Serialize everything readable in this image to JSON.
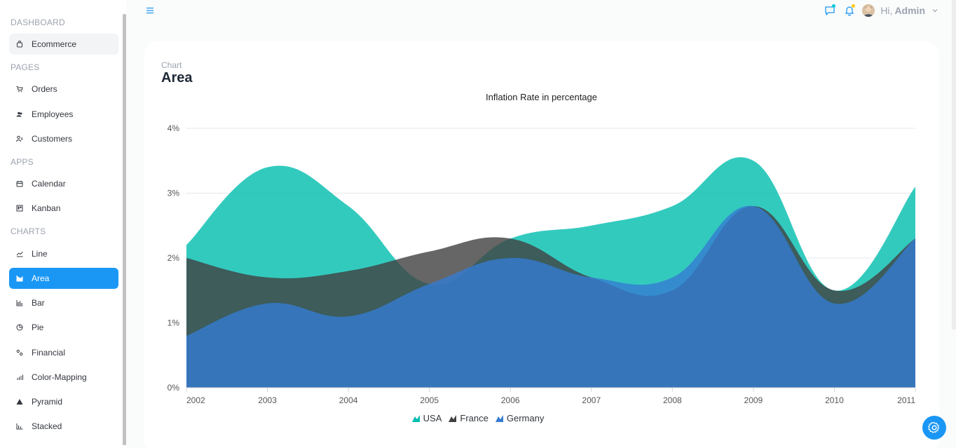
{
  "sidebar": {
    "sections": [
      {
        "title": "DASHBOARD",
        "items": [
          {
            "label": "Ecommerce",
            "icon": "bag-icon"
          }
        ]
      },
      {
        "title": "PAGES",
        "items": [
          {
            "label": "Orders",
            "icon": "cart-icon"
          },
          {
            "label": "Employees",
            "icon": "people-icon"
          },
          {
            "label": "Customers",
            "icon": "user-list-icon"
          }
        ]
      },
      {
        "title": "APPS",
        "items": [
          {
            "label": "Calendar",
            "icon": "calendar-icon"
          },
          {
            "label": "Kanban",
            "icon": "kanban-icon"
          }
        ]
      },
      {
        "title": "CHARTS",
        "items": [
          {
            "label": "Line",
            "icon": "line-chart-icon"
          },
          {
            "label": "Area",
            "icon": "area-chart-icon"
          },
          {
            "label": "Bar",
            "icon": "bar-chart-icon"
          },
          {
            "label": "Pie",
            "icon": "pie-chart-icon"
          },
          {
            "label": "Financial",
            "icon": "financial-icon"
          },
          {
            "label": "Color-Mapping",
            "icon": "color-mapping-icon"
          },
          {
            "label": "Pyramid",
            "icon": "pyramid-icon"
          },
          {
            "label": "Stacked",
            "icon": "stacked-icon"
          }
        ]
      }
    ],
    "active": "Area"
  },
  "topbar": {
    "greeting": "Hi,",
    "username": "Admin",
    "accent": "#1a97f5",
    "chat_dot": "#03c9d7",
    "notif_dot": "#fec90f"
  },
  "card": {
    "eyebrow": "Chart",
    "title": "Area"
  },
  "chart_data": {
    "type": "area",
    "title": "Inflation Rate in percentage",
    "x": [
      "2002",
      "2003",
      "2004",
      "2005",
      "2006",
      "2007",
      "2008",
      "2009",
      "2010",
      "2011"
    ],
    "ylim": [
      0,
      4
    ],
    "yticks": [
      "0%",
      "1%",
      "2%",
      "3%",
      "4%"
    ],
    "ytick_values": [
      0,
      1,
      2,
      3,
      4
    ],
    "grid": true,
    "legend_position": "bottom-center",
    "series": [
      {
        "name": "USA",
        "color": "#00bdae",
        "values": [
          2.2,
          3.4,
          2.8,
          1.6,
          2.3,
          2.5,
          2.8,
          3.5,
          1.5,
          3.1
        ]
      },
      {
        "name": "France",
        "color": "#404041",
        "values": [
          2.0,
          1.7,
          1.8,
          2.1,
          2.3,
          1.7,
          1.5,
          2.8,
          1.5,
          2.3
        ]
      },
      {
        "name": "Germany",
        "color": "#357cd2",
        "values": [
          0.8,
          1.3,
          1.1,
          1.6,
          2.0,
          1.7,
          1.7,
          2.8,
          1.3,
          2.3
        ]
      }
    ]
  }
}
